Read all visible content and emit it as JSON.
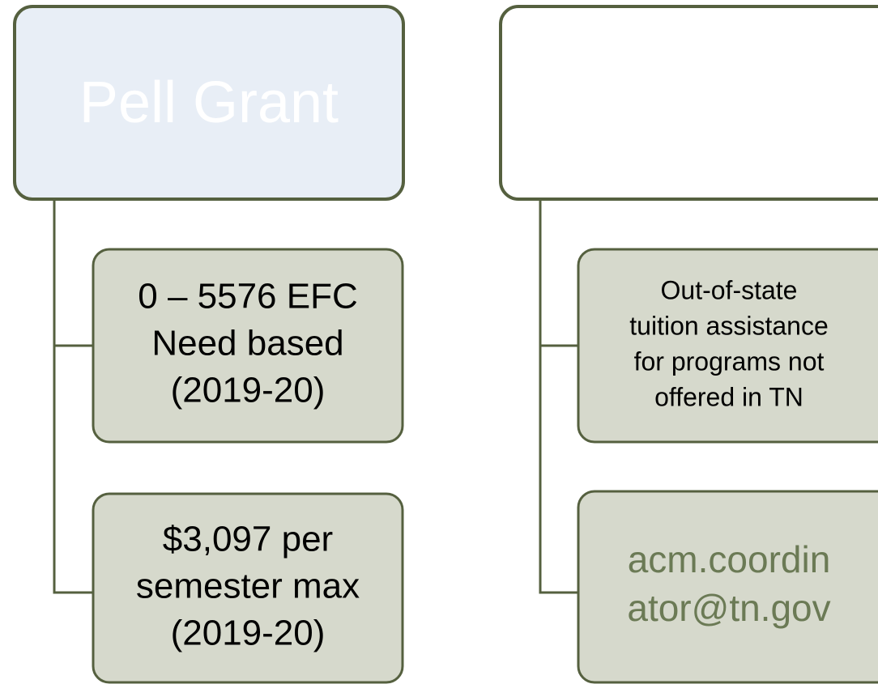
{
  "columns": [
    {
      "header": "Pell Grant",
      "items": [
        {
          "lines": [
            "0 – 5576 EFC",
            "Need based",
            "(2019-20)"
          ]
        },
        {
          "lines": [
            "$3,097 per",
            "semester max",
            "(2019-20)"
          ]
        }
      ]
    },
    {
      "items": [
        {
          "lines": [
            "Out-of-state",
            "tuition assistance",
            "for programs not",
            "offered in TN"
          ]
        },
        {
          "lines": [
            "acm.coordin",
            "ator@tn.gov"
          ]
        }
      ]
    }
  ]
}
